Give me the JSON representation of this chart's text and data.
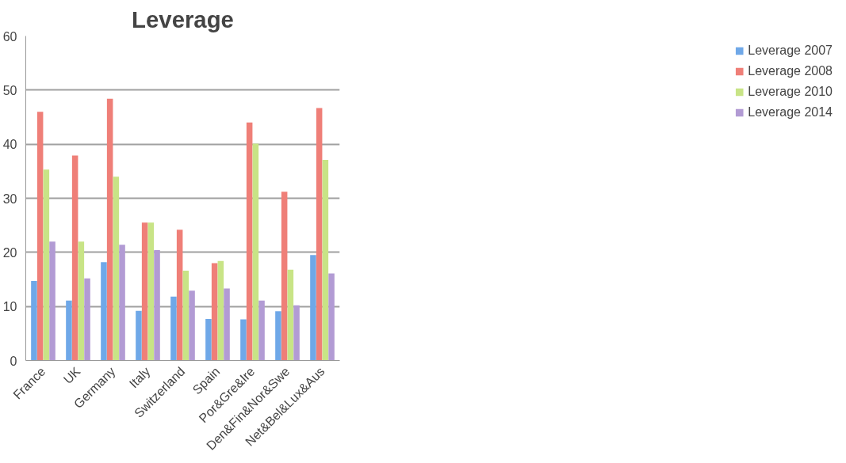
{
  "chart_data": {
    "type": "bar",
    "title": "Leverage",
    "categories": [
      "France",
      "UK",
      "Germany",
      "Italy",
      "Switzerland",
      "Spain",
      "Por&Gre&Ire",
      "Den&Fin&Nor&Swe",
      "Net&Bel&Lux&Aus"
    ],
    "series": [
      {
        "name": "Leverage 2007",
        "color": "#6fa8e8",
        "values": [
          14.7,
          11.1,
          18.2,
          9.2,
          11.8,
          7.7,
          7.6,
          9.1,
          19.5
        ]
      },
      {
        "name": "Leverage 2008",
        "color": "#ef7f78",
        "values": [
          46,
          37.9,
          48.4,
          25.5,
          24.2,
          18,
          44,
          31.2,
          46.7
        ]
      },
      {
        "name": "Leverage 2010",
        "color": "#c8e486",
        "values": [
          35.3,
          22,
          34,
          25.5,
          16.6,
          18.4,
          40.1,
          16.8,
          37.1
        ]
      },
      {
        "name": "Leverage 2014",
        "color": "#b29bd4",
        "values": [
          22,
          15.2,
          21.4,
          20.4,
          12.9,
          13.3,
          11.1,
          10.2,
          16.1
        ]
      }
    ],
    "ylim": [
      0,
      60
    ],
    "yticks": [
      0,
      10,
      20,
      30,
      40,
      50,
      60
    ],
    "grid": "y",
    "legend": "right"
  }
}
